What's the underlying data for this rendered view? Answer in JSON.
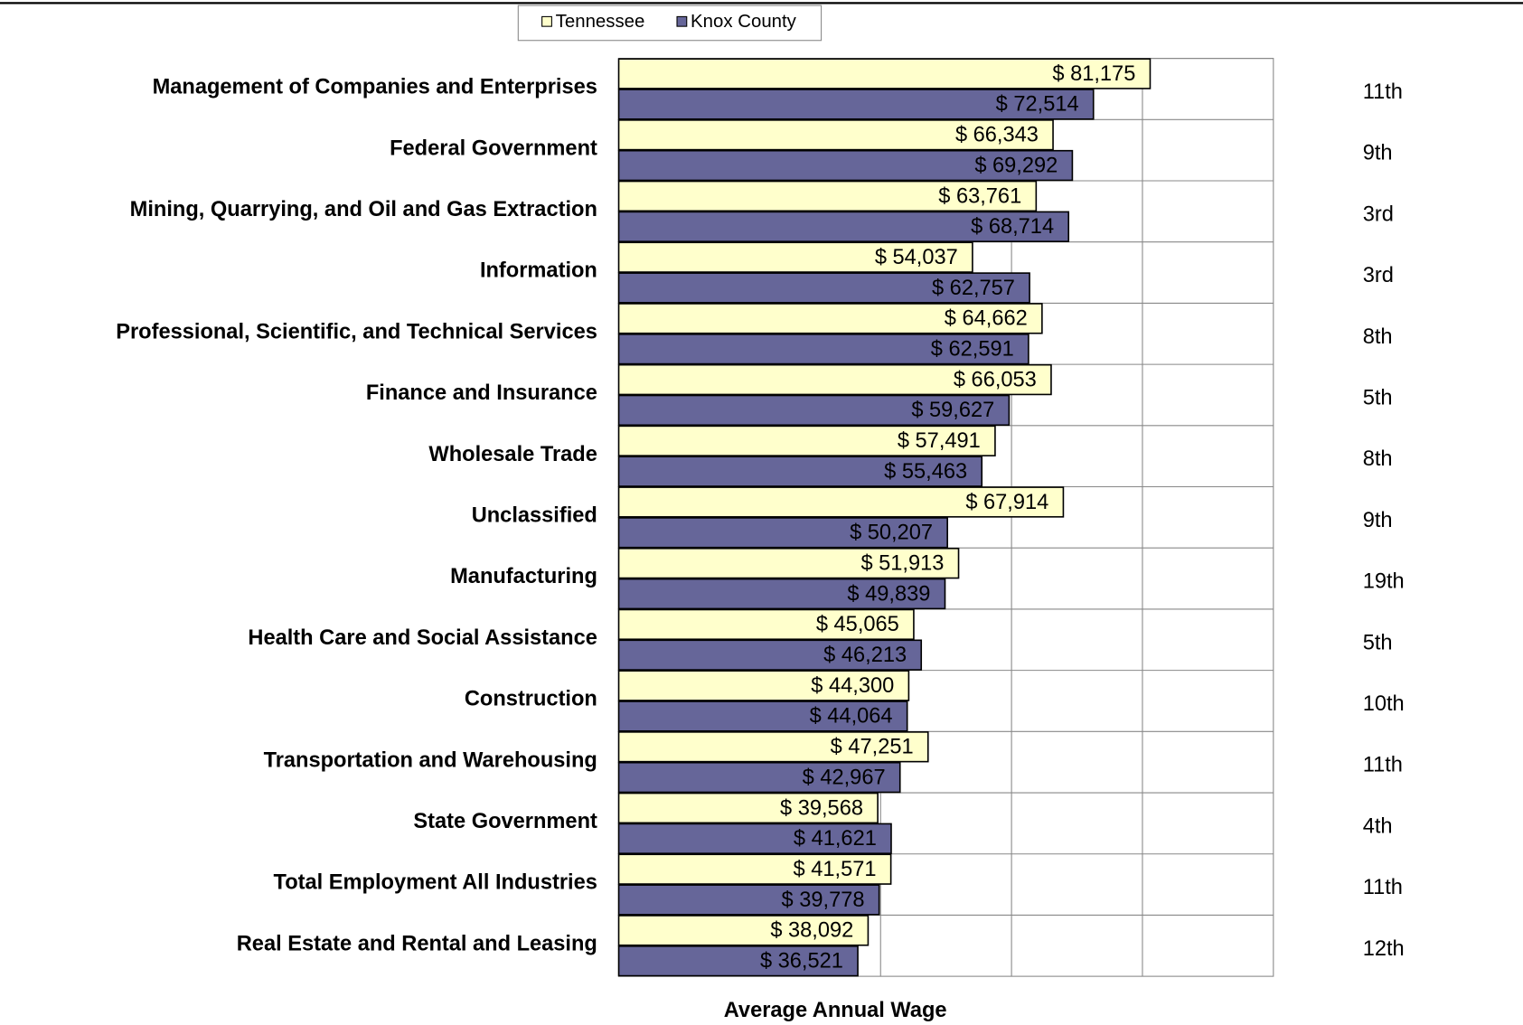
{
  "chart_data": {
    "type": "barh",
    "x_label": "Average Annual Wage",
    "categories": [
      "Management of Companies and Enterprises",
      "Federal Government",
      "Mining, Quarrying, and Oil and Gas Extraction",
      "Information",
      "Professional, Scientific, and Technical Services",
      "Finance and Insurance",
      "Wholesale Trade",
      "Unclassified",
      "Manufacturing",
      "Health Care and Social Assistance",
      "Construction",
      "Transportation and Warehousing",
      "State Government",
      "Total Employment All Industries",
      "Real Estate and Rental and Leasing"
    ],
    "series": [
      {
        "name": "Tennessee",
        "color": "#ffffcc",
        "values": [
          81175,
          66343,
          63761,
          54037,
          64662,
          66053,
          57491,
          67914,
          51913,
          45065,
          44300,
          47251,
          39568,
          41571,
          38092
        ],
        "value_labels": [
          "$ 81,175",
          "$ 66,343",
          "$ 63,761",
          "$ 54,037",
          "$ 64,662",
          "$ 66,053",
          "$ 57,491",
          "$ 67,914",
          "$ 51,913",
          "$ 45,065",
          "$ 44,300",
          "$ 47,251",
          "$ 39,568",
          "$ 41,571",
          "$ 38,092"
        ]
      },
      {
        "name": "Knox County",
        "color": "#666699",
        "values": [
          72514,
          69292,
          68714,
          62757,
          62591,
          59627,
          55463,
          50207,
          49839,
          46213,
          44064,
          42967,
          41621,
          39778,
          36521
        ],
        "value_labels": [
          "$ 72,514",
          "$ 69,292",
          "$ 68,714",
          "$ 62,757",
          "$ 62,591",
          "$ 59,627",
          "$ 55,463",
          "$ 50,207",
          "$ 49,839",
          "$ 46,213",
          "$ 44,064",
          "$ 42,967",
          "$ 41,621",
          "$ 39,778",
          "$ 36,521"
        ]
      }
    ],
    "ranks": [
      "11th",
      "9th",
      "3rd",
      "3rd",
      "8th",
      "5th",
      "8th",
      "9th",
      "19th",
      "5th",
      "10th",
      "11th",
      "4th",
      "11th",
      "12th"
    ],
    "xlim": [
      0,
      100000
    ],
    "xticks": [
      20000,
      40000,
      60000,
      80000
    ],
    "grid": true
  }
}
